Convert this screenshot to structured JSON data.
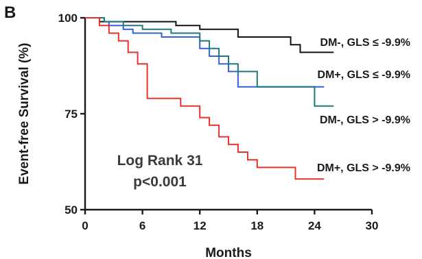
{
  "chart_data": {
    "type": "line",
    "panel_label": "B",
    "xlabel": "Months",
    "ylabel": "Event-free Survival (%)",
    "xlim": [
      0,
      30
    ],
    "ylim": [
      50,
      100
    ],
    "x_ticks": [
      0,
      6,
      12,
      18,
      24,
      30
    ],
    "y_ticks": [
      50,
      75,
      100
    ],
    "grid": false,
    "annotation": {
      "line1": "Log Rank 31",
      "line2": "p<0.001"
    },
    "series": [
      {
        "name": "DM-, GLS ≤ -9.9%",
        "color": "#111111",
        "x": [
          0,
          1.5,
          9.5,
          12,
          16,
          21.5,
          22.5,
          26
        ],
        "y": [
          100,
          99,
          98,
          97,
          95,
          93,
          91,
          91
        ]
      },
      {
        "name": "DM+, GLS ≤ -9.9%",
        "color": "#3461d9",
        "x": [
          0,
          2,
          2.5,
          4,
          5,
          8,
          12,
          13,
          14,
          15,
          16,
          25
        ],
        "y": [
          100,
          99,
          98,
          97,
          96,
          95,
          92,
          90,
          88,
          86,
          82,
          82
        ]
      },
      {
        "name": "DM-, GLS > -9.9%",
        "color": "#1e7a7a",
        "x": [
          0,
          2,
          4,
          6,
          9,
          12,
          13,
          14,
          15,
          16,
          18,
          24,
          26
        ],
        "y": [
          100,
          99,
          98,
          97,
          96,
          94,
          92,
          90,
          88,
          86,
          82,
          77,
          77
        ]
      },
      {
        "name": "DM+, GLS > -9.9%",
        "color": "#e8302c",
        "x": [
          0,
          1.5,
          2.5,
          3.5,
          4.5,
          5.5,
          6.5,
          10,
          12,
          13,
          14,
          15,
          16,
          17,
          18,
          22,
          25
        ],
        "y": [
          100,
          98,
          96,
          94,
          91,
          88,
          79,
          77,
          74,
          72,
          69,
          67,
          65,
          63,
          61,
          58,
          58
        ]
      }
    ]
  }
}
